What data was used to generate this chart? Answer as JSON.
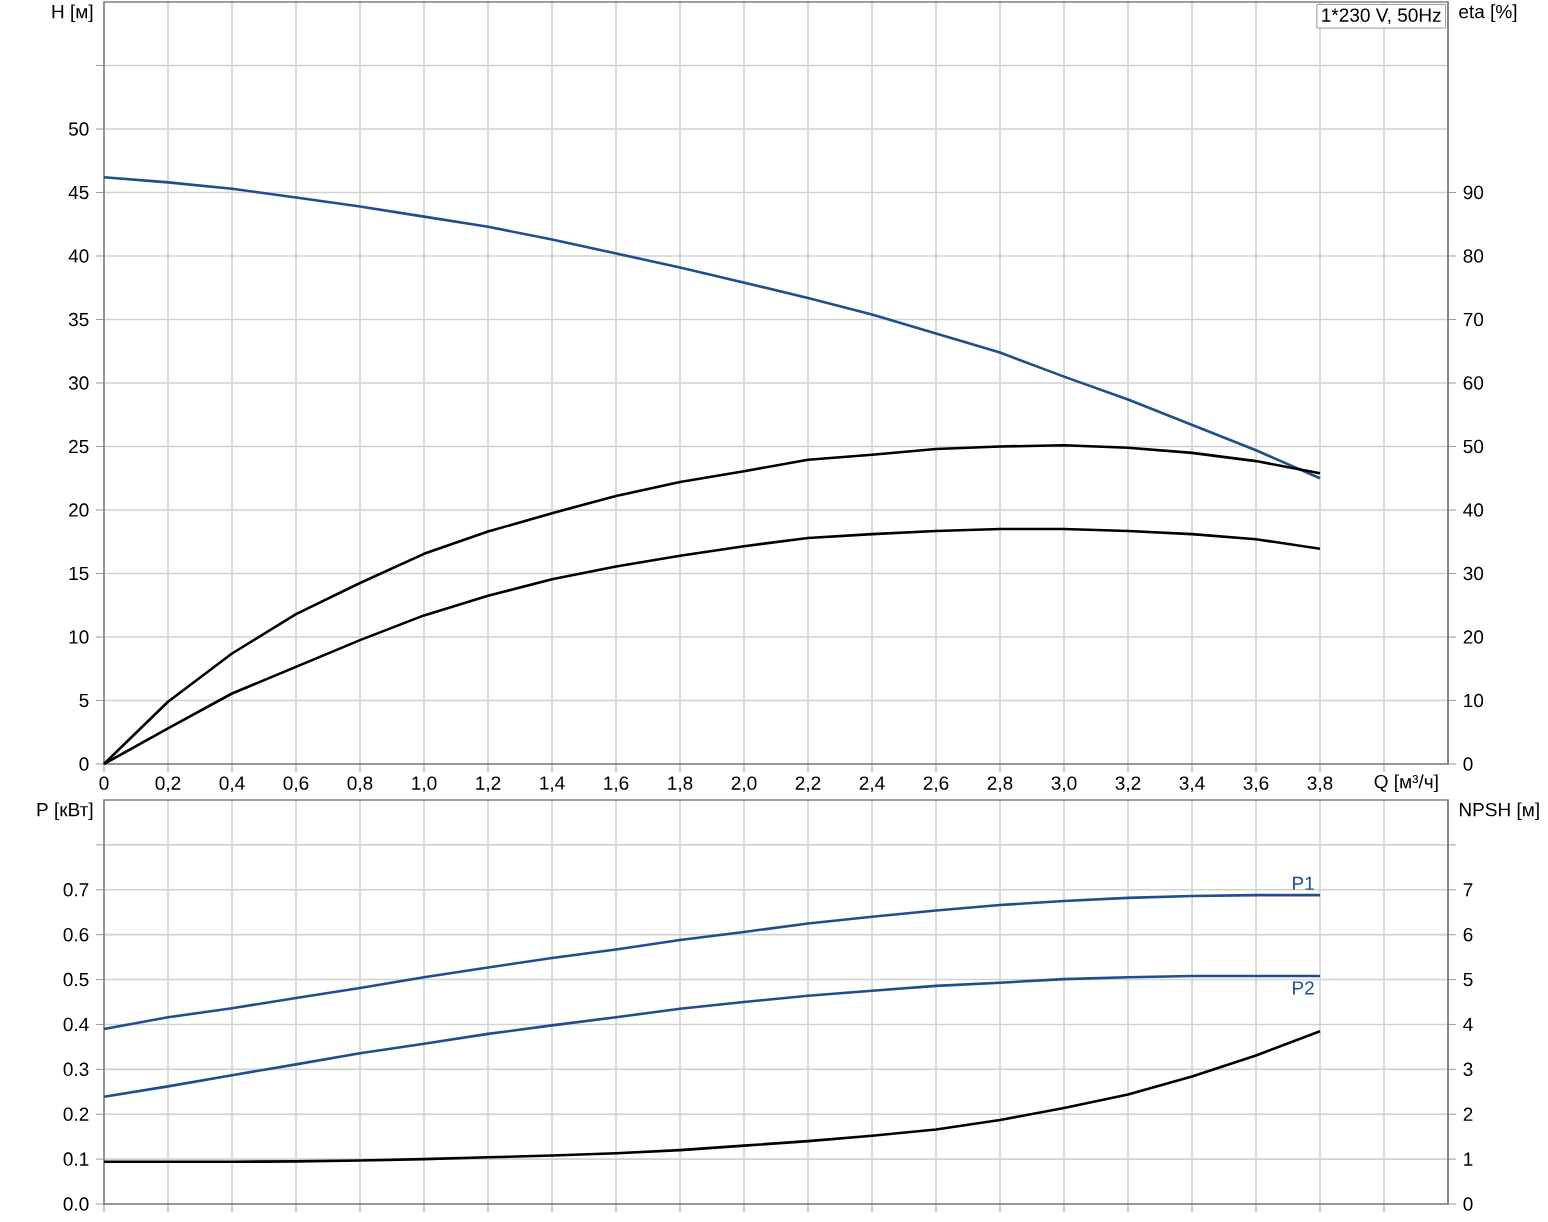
{
  "chart_data": [
    {
      "type": "line",
      "title": "1*230 V, 50Hz",
      "xlabel": "Q [м³/ч]",
      "ylabel": "H [м]",
      "y2label": "eta [%]",
      "x": [
        0,
        0.2,
        0.4,
        0.6,
        0.8,
        1.0,
        1.2,
        1.4,
        1.6,
        1.8,
        2.0,
        2.2,
        2.4,
        2.6,
        2.8,
        3.0,
        3.2,
        3.4,
        3.6,
        3.8
      ],
      "series": [
        {
          "color": "#1f4e8c",
          "values": [
            46.2,
            45.8,
            45.3,
            44.6,
            43.9,
            43.1,
            42.3,
            41.3,
            40.2,
            39.1,
            37.9,
            36.7,
            35.4,
            33.9,
            32.4,
            30.5,
            28.7,
            26.7,
            24.7,
            22.5
          ]
        },
        {
          "color": "#000000",
          "axis": "y2",
          "values": [
            0,
            9.8,
            17.4,
            23.6,
            28.5,
            33.1,
            36.6,
            39.5,
            42.2,
            44.4,
            46.1,
            47.9,
            48.7,
            49.6,
            50.0,
            50.2,
            49.8,
            49.0,
            47.7,
            45.8
          ]
        },
        {
          "color": "#000000",
          "axis": "y2",
          "values": [
            0,
            5.6,
            11.1,
            15.3,
            19.5,
            23.4,
            26.5,
            29.1,
            31.1,
            32.8,
            34.3,
            35.6,
            36.2,
            36.7,
            37.0,
            37.0,
            36.7,
            36.2,
            35.4,
            33.9
          ]
        }
      ],
      "xlim": [
        0,
        4.2
      ],
      "ylim": [
        0,
        60
      ],
      "y2lim": [
        0,
        120
      ],
      "xticks": [
        0,
        {
          "value": 0.2,
          "label": "0,2"
        },
        {
          "value": 0.4,
          "label": "0,4"
        },
        {
          "value": 0.6,
          "label": "0,6"
        },
        {
          "value": 0.8,
          "label": "0,8"
        },
        {
          "value": 1.0,
          "label": "1,0"
        },
        {
          "value": 1.2,
          "label": "1,2"
        },
        {
          "value": 1.4,
          "label": "1,4"
        },
        {
          "value": 1.6,
          "label": "1,6"
        },
        {
          "value": 1.8,
          "label": "1,8"
        },
        {
          "value": 2.0,
          "label": "2,0"
        },
        {
          "value": 2.2,
          "label": "2,2"
        },
        {
          "value": 2.4,
          "label": "2,4"
        },
        {
          "value": 2.6,
          "label": "2,6"
        },
        {
          "value": 2.8,
          "label": "2,8"
        },
        {
          "value": 3.0,
          "label": "3,0"
        },
        {
          "value": 3.2,
          "label": "3,2"
        },
        {
          "value": 3.4,
          "label": "3,4"
        },
        {
          "value": 3.6,
          "label": "3,6"
        },
        {
          "value": 3.8,
          "label": "3,8"
        },
        {
          "value": 4.0,
          "label": null
        }
      ],
      "yticks": [
        0,
        5,
        10,
        15,
        20,
        25,
        30,
        35,
        40,
        45,
        50,
        {
          "value": 55,
          "label": null
        }
      ],
      "y2ticks": [
        0,
        10,
        20,
        30,
        40,
        50,
        60,
        70,
        80,
        90
      ],
      "grid": true
    },
    {
      "type": "line",
      "ylabel": "P [кВт]",
      "y2label": "NPSH [м]",
      "x": [
        0,
        0.2,
        0.4,
        0.6,
        0.8,
        1.0,
        1.2,
        1.4,
        1.6,
        1.8,
        2.0,
        2.2,
        2.4,
        2.6,
        2.8,
        3.0,
        3.2,
        3.4,
        3.6,
        3.8
      ],
      "series": [
        {
          "name": "P1",
          "color": "#1f4e8c",
          "values": [
            0.39,
            0.416,
            0.436,
            0.459,
            0.481,
            0.505,
            0.527,
            0.548,
            0.567,
            0.588,
            0.606,
            0.625,
            0.64,
            0.654,
            0.666,
            0.675,
            0.682,
            0.686,
            0.688,
            0.688
          ]
        },
        {
          "name": "P2",
          "color": "#1f4e8c",
          "values": [
            0.239,
            0.262,
            0.287,
            0.311,
            0.336,
            0.357,
            0.379,
            0.398,
            0.416,
            0.435,
            0.45,
            0.464,
            0.475,
            0.486,
            0.493,
            0.501,
            0.505,
            0.508,
            0.508,
            0.508
          ]
        },
        {
          "color": "#000000",
          "axis": "y2",
          "values": [
            0.94,
            0.94,
            0.94,
            0.95,
            0.97,
            1.0,
            1.04,
            1.08,
            1.13,
            1.2,
            1.3,
            1.4,
            1.52,
            1.66,
            1.87,
            2.14,
            2.44,
            2.84,
            3.31,
            3.85
          ]
        }
      ],
      "xlim": [
        0,
        4.2
      ],
      "ylim": [
        0,
        0.9
      ],
      "y2lim": [
        0,
        9
      ],
      "xticks": [
        0,
        0.2,
        0.4,
        0.6,
        0.8,
        1.0,
        1.2,
        1.4,
        1.6,
        1.8,
        2.0,
        2.2,
        2.4,
        2.6,
        2.8,
        3.0,
        3.2,
        3.4,
        3.6,
        3.8,
        4.0
      ],
      "yticks": [
        {
          "value": 0,
          "label": "0.0"
        },
        0.1,
        0.2,
        0.3,
        0.4,
        0.5,
        0.6,
        0.7,
        {
          "value": 0.8,
          "label": null
        }
      ],
      "y2ticks": [
        0,
        1,
        2,
        3,
        4,
        5,
        6,
        7,
        {
          "value": 8,
          "label": null
        }
      ],
      "grid": true,
      "tick_labels": "y"
    }
  ]
}
